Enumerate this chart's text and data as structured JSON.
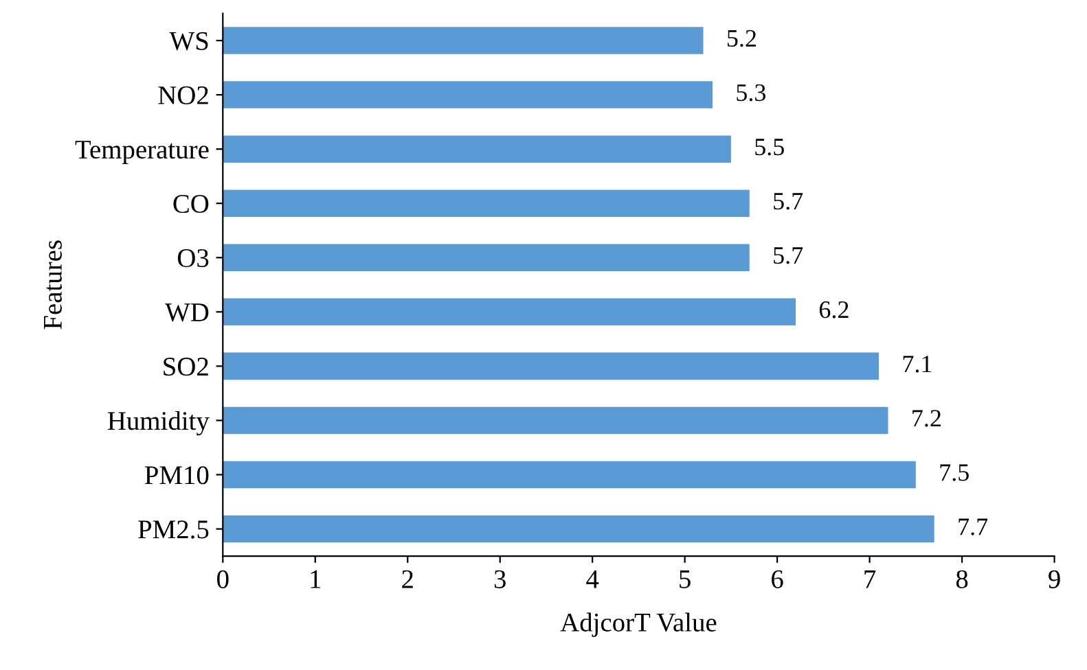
{
  "chart_data": {
    "type": "bar",
    "orientation": "horizontal",
    "xlabel": "AdjcorT Value",
    "ylabel": "Features",
    "categories": [
      "WS",
      "NO2",
      "Temperature",
      "CO",
      "O3",
      "WD",
      "SO2",
      "Humidity",
      "PM10",
      "PM2.5"
    ],
    "values": [
      5.2,
      5.3,
      5.5,
      5.7,
      5.7,
      6.2,
      7.1,
      7.2,
      7.5,
      7.7
    ],
    "color": "#5b9bd5",
    "xlim": [
      0,
      9
    ],
    "xticks": [
      0,
      1,
      2,
      3,
      4,
      5,
      6,
      7,
      8,
      9
    ],
    "data_labels": true,
    "grid": false,
    "legend": false
  }
}
